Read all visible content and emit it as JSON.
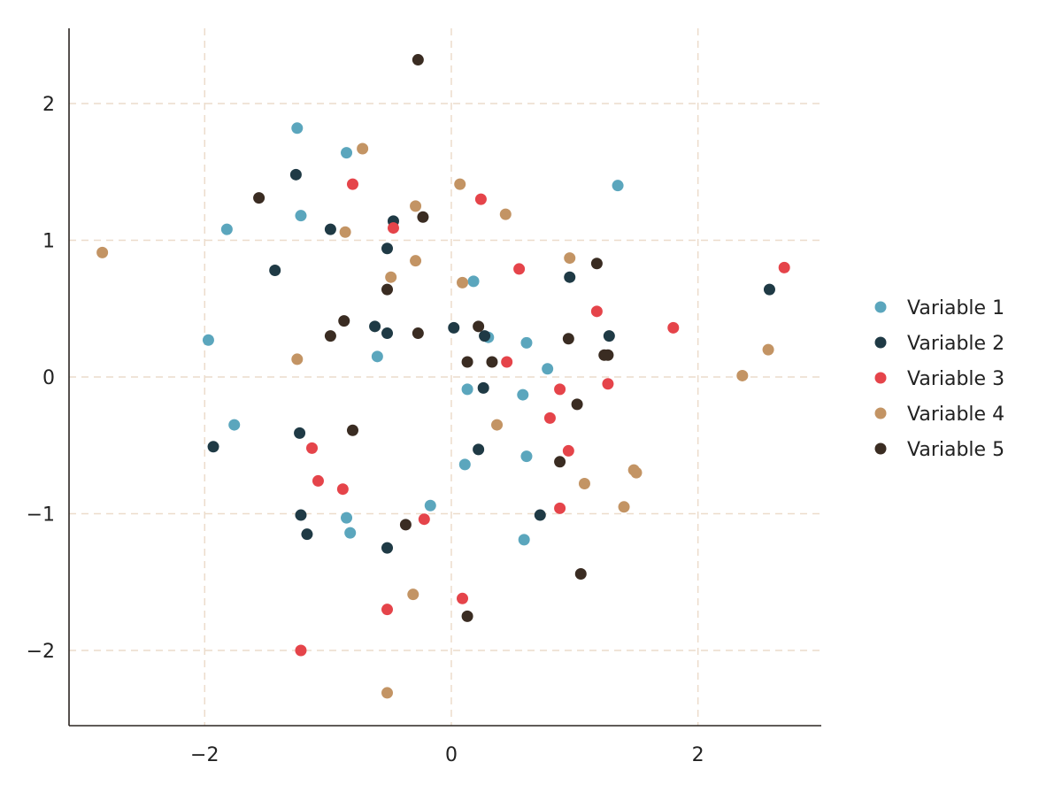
{
  "chart_data": {
    "type": "scatter",
    "title": "",
    "xlabel": "",
    "ylabel": "",
    "xlim": [
      -3.1,
      3.0
    ],
    "ylim": [
      -2.55,
      2.55
    ],
    "xticks": [
      -2,
      0,
      2
    ],
    "yticks": [
      -2,
      -1,
      0,
      1,
      2
    ],
    "xtick_labels": [
      "−2",
      "0",
      "2"
    ],
    "ytick_labels": [
      "−2",
      "−1",
      "0",
      "1",
      "2"
    ],
    "grid": true,
    "legend_position": "right",
    "series": [
      {
        "name": "Variable 1",
        "color": "#5ba6bd",
        "points": [
          [
            -1.25,
            1.82
          ],
          [
            -0.85,
            1.64
          ],
          [
            1.35,
            1.4
          ],
          [
            -1.22,
            1.18
          ],
          [
            -1.82,
            1.08
          ],
          [
            0.18,
            0.7
          ],
          [
            -1.97,
            0.27
          ],
          [
            0.3,
            0.29
          ],
          [
            0.61,
            0.25
          ],
          [
            -0.6,
            0.15
          ],
          [
            0.78,
            0.06
          ],
          [
            0.13,
            -0.09
          ],
          [
            0.58,
            -0.13
          ],
          [
            -1.76,
            -0.35
          ],
          [
            0.61,
            -0.58
          ],
          [
            0.11,
            -0.64
          ],
          [
            -0.17,
            -0.94
          ],
          [
            -0.85,
            -1.03
          ],
          [
            -0.82,
            -1.14
          ],
          [
            0.59,
            -1.19
          ]
        ]
      },
      {
        "name": "Variable 2",
        "color": "#1f3a45",
        "points": [
          [
            -1.26,
            1.48
          ],
          [
            -0.47,
            1.14
          ],
          [
            -0.98,
            1.08
          ],
          [
            -0.52,
            0.94
          ],
          [
            -1.43,
            0.78
          ],
          [
            0.96,
            0.73
          ],
          [
            2.58,
            0.64
          ],
          [
            -0.62,
            0.37
          ],
          [
            0.02,
            0.36
          ],
          [
            -0.52,
            0.32
          ],
          [
            0.27,
            0.3
          ],
          [
            1.28,
            0.3
          ],
          [
            0.26,
            -0.08
          ],
          [
            -1.93,
            -0.51
          ],
          [
            -1.23,
            -0.41
          ],
          [
            0.22,
            -0.53
          ],
          [
            -1.22,
            -1.01
          ],
          [
            0.72,
            -1.01
          ],
          [
            -1.17,
            -1.15
          ],
          [
            -0.52,
            -1.25
          ]
        ]
      },
      {
        "name": "Variable 3",
        "color": "#e5444a",
        "points": [
          [
            -0.8,
            1.41
          ],
          [
            0.24,
            1.3
          ],
          [
            -0.47,
            1.09
          ],
          [
            0.55,
            0.79
          ],
          [
            2.7,
            0.8
          ],
          [
            1.18,
            0.48
          ],
          [
            1.8,
            0.36
          ],
          [
            0.45,
            0.11
          ],
          [
            0.88,
            -0.09
          ],
          [
            1.27,
            -0.05
          ],
          [
            0.8,
            -0.3
          ],
          [
            -1.13,
            -0.52
          ],
          [
            0.95,
            -0.54
          ],
          [
            -1.08,
            -0.76
          ],
          [
            -0.88,
            -0.82
          ],
          [
            0.88,
            -0.96
          ],
          [
            -0.22,
            -1.04
          ],
          [
            0.09,
            -1.62
          ],
          [
            -0.52,
            -1.7
          ],
          [
            -1.22,
            -2.0
          ]
        ]
      },
      {
        "name": "Variable 4",
        "color": "#c39464",
        "points": [
          [
            -0.72,
            1.67
          ],
          [
            0.07,
            1.41
          ],
          [
            -0.29,
            1.25
          ],
          [
            0.44,
            1.19
          ],
          [
            -0.86,
            1.06
          ],
          [
            -2.83,
            0.91
          ],
          [
            0.96,
            0.87
          ],
          [
            -0.29,
            0.85
          ],
          [
            -0.49,
            0.73
          ],
          [
            0.09,
            0.69
          ],
          [
            2.57,
            0.2
          ],
          [
            -1.25,
            0.13
          ],
          [
            2.36,
            0.01
          ],
          [
            0.37,
            -0.35
          ],
          [
            1.48,
            -0.68
          ],
          [
            1.5,
            -0.7
          ],
          [
            1.08,
            -0.78
          ],
          [
            1.4,
            -0.95
          ],
          [
            -0.31,
            -1.59
          ],
          [
            -0.52,
            -2.31
          ]
        ]
      },
      {
        "name": "Variable 5",
        "color": "#3a2c22",
        "points": [
          [
            -0.27,
            2.32
          ],
          [
            -1.56,
            1.31
          ],
          [
            -0.23,
            1.17
          ],
          [
            1.18,
            0.83
          ],
          [
            -0.52,
            0.64
          ],
          [
            -0.87,
            0.41
          ],
          [
            0.22,
            0.37
          ],
          [
            -0.98,
            0.3
          ],
          [
            -0.27,
            0.32
          ],
          [
            0.95,
            0.28
          ],
          [
            1.24,
            0.16
          ],
          [
            1.27,
            0.16
          ],
          [
            0.13,
            0.11
          ],
          [
            0.33,
            0.11
          ],
          [
            1.02,
            -0.2
          ],
          [
            -0.8,
            -0.39
          ],
          [
            0.88,
            -0.62
          ],
          [
            -0.37,
            -1.08
          ],
          [
            1.05,
            -1.44
          ],
          [
            0.13,
            -1.75
          ]
        ]
      }
    ]
  }
}
